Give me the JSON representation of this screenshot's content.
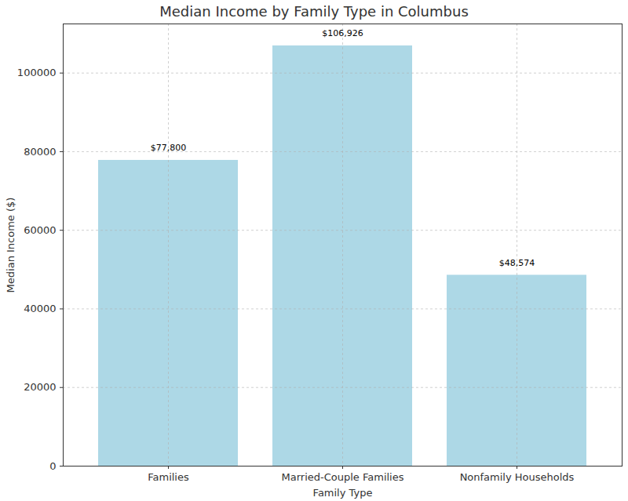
{
  "chart_data": {
    "type": "bar",
    "title": "Median Income by Family Type in Columbus",
    "x_label": "Family Type",
    "y_label": "Median Income ($)",
    "categories": [
      "Families",
      "Married-Couple Families",
      "Nonfamily Households"
    ],
    "values": [
      77800,
      106926,
      48574
    ],
    "value_labels": [
      "$77,800",
      "$106,926",
      "$48,574"
    ],
    "data_labels": true,
    "color": "#add8e6",
    "ylim": [
      0,
      112500
    ],
    "yticks": [
      0,
      20000,
      40000,
      60000,
      80000,
      100000
    ],
    "grid": true
  }
}
